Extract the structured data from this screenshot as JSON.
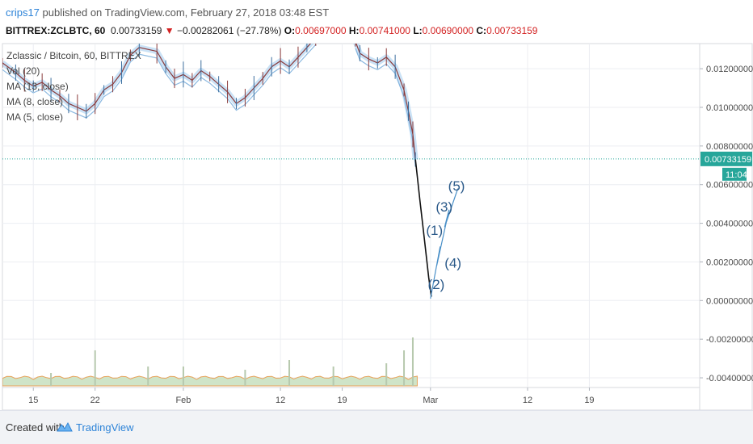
{
  "header": {
    "user": "crips17",
    "published_text": "published on TradingView.com, February 27, 2018 03:48 EST",
    "symbol": "BITTREX:ZCLBTC, 60",
    "last": "0.00733159",
    "change_arrow": "▼",
    "change": "−0.00282061 (−27.78%)",
    "open_key": "O:",
    "open": "0.00697000",
    "high_key": "H:",
    "high": "0.00741000",
    "low_key": "L:",
    "low": "0.00690000",
    "close_key": "C:",
    "close": "0.00733159"
  },
  "legend": [
    "Zclassic / Bitcoin, 60, BITTREX",
    "Vol (20)",
    "MA (13, close)",
    "MA (8, close)",
    "MA (5, close)"
  ],
  "price_tag": {
    "value": "0.00733159",
    "countdown": "11:04"
  },
  "footer": {
    "created_with": "Created with",
    "brand": "TradingView",
    "logo_icon": "tradingview-logo-icon"
  },
  "colors": {
    "accent": "#2e84d8",
    "price_tag": "#26a69a",
    "down": "#d32222",
    "elliott": "#2b5a8a"
  },
  "chart_data": {
    "type": "line",
    "title": "Zclassic / Bitcoin, 60, BITTREX",
    "ylim": [
      -0.0045,
      0.0133
    ],
    "y_ticks": [
      0.012,
      0.01,
      0.008,
      0.006,
      0.004,
      0.002,
      0.0,
      -0.002,
      -0.004
    ],
    "y_tick_labels": [
      "0.01200000",
      "0.01000000",
      "0.00800000",
      "0.00600000",
      "0.00400000",
      "0.00200000",
      "0.00000000",
      "-0.00200000",
      "-0.00400000"
    ],
    "x_tick_labels": [
      "15",
      "22",
      "Feb",
      "12",
      "19",
      "Mar",
      "12",
      "19"
    ],
    "x_ticks_day": [
      0,
      7,
      17,
      28,
      35,
      45,
      56,
      63
    ],
    "xlim_day": [
      -3.5,
      75.5
    ],
    "series": [
      {
        "kind": "price",
        "points": [
          [
            -3.5,
            0.0123
          ],
          [
            -2,
            0.0118
          ],
          [
            -1,
            0.0114
          ],
          [
            0,
            0.0111
          ],
          [
            1,
            0.0113
          ],
          [
            2,
            0.0109
          ],
          [
            3,
            0.0106
          ],
          [
            4,
            0.0102
          ],
          [
            5,
            0.01
          ],
          [
            6,
            0.0098
          ],
          [
            7,
            0.0102
          ],
          [
            8,
            0.0109
          ],
          [
            9,
            0.0112
          ],
          [
            10,
            0.0118
          ],
          [
            11,
            0.0127
          ],
          [
            12,
            0.0131
          ],
          [
            14,
            0.0129
          ],
          [
            15,
            0.0121
          ],
          [
            16,
            0.0115
          ],
          [
            17,
            0.0117
          ],
          [
            18,
            0.0114
          ],
          [
            19,
            0.0119
          ],
          [
            20,
            0.0116
          ],
          [
            21,
            0.0112
          ],
          [
            22,
            0.0108
          ],
          [
            23,
            0.0102
          ],
          [
            24,
            0.0105
          ],
          [
            25,
            0.011
          ],
          [
            26,
            0.0115
          ],
          [
            27,
            0.0121
          ],
          [
            28,
            0.0124
          ],
          [
            29,
            0.0121
          ],
          [
            30,
            0.0126
          ],
          [
            31,
            0.0131
          ],
          [
            32,
            0.0136
          ],
          [
            36.5,
            0.0134
          ],
          [
            37,
            0.0128
          ],
          [
            38,
            0.0125
          ],
          [
            39,
            0.0123
          ],
          [
            40,
            0.0126
          ],
          [
            41,
            0.0121
          ],
          [
            42,
            0.0109
          ],
          [
            42.5,
            0.0098
          ],
          [
            43,
            0.0086
          ],
          [
            43.3,
            0.0073
          ]
        ]
      },
      {
        "kind": "projection",
        "points": [
          [
            43.3,
            0.0073
          ],
          [
            43.8,
            0.0052
          ],
          [
            44.3,
            0.0032
          ],
          [
            44.8,
            0.0012
          ],
          [
            45.1,
            0.0002
          ]
        ]
      },
      {
        "kind": "elliott-wave",
        "points": [
          [
            45.0,
            0.0001
          ],
          [
            46.1,
            0.0028
          ],
          [
            45.7,
            0.0018
          ],
          [
            47.1,
            0.0047
          ],
          [
            46.6,
            0.0038
          ],
          [
            48.1,
            0.0058
          ]
        ]
      }
    ],
    "annotations": [
      {
        "text": "(1)",
        "x_day": 44.5,
        "y": 0.0034
      },
      {
        "text": "(2)",
        "x_day": 44.7,
        "y": 0.0006
      },
      {
        "text": "(3)",
        "x_day": 45.6,
        "y": 0.0046
      },
      {
        "text": "(4)",
        "x_day": 46.6,
        "y": 0.0017
      },
      {
        "text": "(5)",
        "x_day": 47.0,
        "y": 0.0057
      }
    ],
    "current_price": 0.00733159,
    "volume": {
      "spikes": [
        [
          2,
          0.2
        ],
        [
          7,
          0.55
        ],
        [
          13,
          0.3
        ],
        [
          17,
          0.3
        ],
        [
          24,
          0.25
        ],
        [
          29,
          0.4
        ],
        [
          34,
          0.3
        ],
        [
          40,
          0.35
        ],
        [
          42,
          0.55
        ],
        [
          43,
          0.75
        ]
      ]
    },
    "grid": true
  }
}
